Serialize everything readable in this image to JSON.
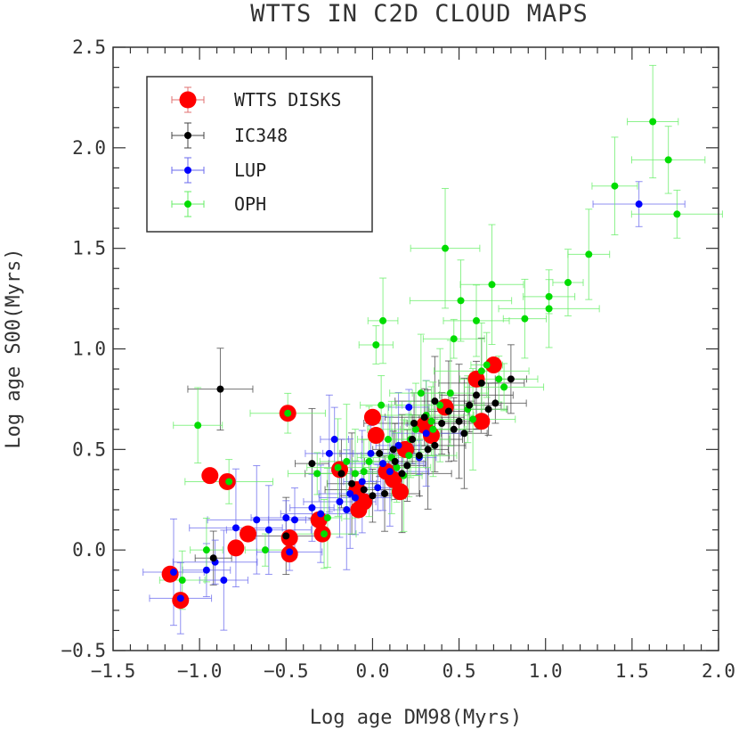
{
  "chart_data": {
    "type": "scatter",
    "title": "WTTS IN C2D CLOUD MAPS",
    "xlabel": "Log age DM98(Myrs)",
    "ylabel": "Log age S00(Myrs)",
    "xlim": [
      -1.5,
      2.0
    ],
    "ylim": [
      -0.5,
      2.5
    ],
    "xticks": [
      -1.5,
      -1.0,
      -0.5,
      0.0,
      0.5,
      1.0,
      1.5,
      2.0
    ],
    "yticks": [
      -0.5,
      0.0,
      0.5,
      1.0,
      1.5,
      2.0,
      2.5
    ],
    "xtick_labels": [
      "−1.5",
      "−1.0",
      "−0.5",
      "0.0",
      "0.5",
      "1.0",
      "1.5",
      "2.0"
    ],
    "ytick_labels": [
      "−0.5",
      "0.0",
      "0.5",
      "1.0",
      "1.5",
      "2.0",
      "2.5"
    ],
    "grid": false,
    "legend_position": "top-left",
    "series": [
      {
        "name": "WTTS DISKS",
        "color": "#ff0000",
        "marker": "large-circle",
        "points": [
          [
            -1.17,
            -0.12
          ],
          [
            -1.11,
            -0.25
          ],
          [
            -0.94,
            0.37
          ],
          [
            -0.84,
            0.34
          ],
          [
            -0.79,
            0.01
          ],
          [
            -0.72,
            0.08
          ],
          [
            -0.49,
            0.68
          ],
          [
            -0.48,
            0.06
          ],
          [
            -0.48,
            -0.02
          ],
          [
            -0.31,
            0.15
          ],
          [
            -0.29,
            0.08
          ],
          [
            -0.19,
            0.4
          ],
          [
            -0.09,
            0.3
          ],
          [
            -0.08,
            0.2
          ],
          [
            -0.05,
            0.24
          ],
          [
            0.0,
            0.66
          ],
          [
            0.02,
            0.57
          ],
          [
            0.08,
            0.39
          ],
          [
            0.12,
            0.35
          ],
          [
            0.16,
            0.29
          ],
          [
            0.19,
            0.5
          ],
          [
            0.3,
            0.62
          ],
          [
            0.34,
            0.57
          ],
          [
            0.42,
            0.71
          ],
          [
            0.6,
            0.85
          ],
          [
            0.63,
            0.64
          ],
          [
            0.7,
            0.92
          ]
        ]
      },
      {
        "name": "IC348",
        "color": "#000000",
        "marker": "dot",
        "points": [
          [
            -0.88,
            0.8
          ],
          [
            -0.92,
            -0.04
          ],
          [
            -0.5,
            0.07
          ],
          [
            -0.35,
            0.43
          ],
          [
            -0.18,
            0.38
          ],
          [
            -0.12,
            0.33
          ],
          [
            -0.05,
            0.3
          ],
          [
            0.0,
            0.27
          ],
          [
            0.04,
            0.48
          ],
          [
            0.07,
            0.28
          ],
          [
            0.12,
            0.5
          ],
          [
            0.17,
            0.38
          ],
          [
            0.2,
            0.42
          ],
          [
            0.23,
            0.55
          ],
          [
            0.27,
            0.47
          ],
          [
            0.3,
            0.66
          ],
          [
            0.32,
            0.5
          ],
          [
            0.36,
            0.52
          ],
          [
            0.4,
            0.63
          ],
          [
            0.44,
            0.69
          ],
          [
            0.47,
            0.6
          ],
          [
            0.5,
            0.64
          ],
          [
            0.53,
            0.58
          ],
          [
            0.56,
            0.72
          ],
          [
            0.6,
            0.77
          ],
          [
            0.63,
            0.83
          ],
          [
            0.67,
            0.7
          ],
          [
            0.71,
            0.73
          ],
          [
            0.8,
            0.85
          ],
          [
            0.36,
            0.74
          ],
          [
            0.24,
            0.63
          ],
          [
            0.13,
            0.44
          ]
        ]
      },
      {
        "name": "LUP",
        "color": "#0000ff",
        "marker": "dot",
        "points": [
          [
            -1.15,
            -0.11
          ],
          [
            -1.11,
            -0.24
          ],
          [
            -0.96,
            -0.1
          ],
          [
            -0.91,
            -0.06
          ],
          [
            -0.86,
            -0.15
          ],
          [
            -0.79,
            0.11
          ],
          [
            -0.67,
            0.15
          ],
          [
            -0.6,
            0.1
          ],
          [
            -0.5,
            0.16
          ],
          [
            -0.45,
            0.15
          ],
          [
            -0.35,
            0.21
          ],
          [
            -0.3,
            0.18
          ],
          [
            -0.25,
            0.48
          ],
          [
            -0.22,
            0.55
          ],
          [
            -0.19,
            0.24
          ],
          [
            -0.15,
            0.2
          ],
          [
            -0.13,
            0.28
          ],
          [
            -0.1,
            0.26
          ],
          [
            -0.06,
            0.34
          ],
          [
            -0.01,
            0.48
          ],
          [
            0.03,
            0.31
          ],
          [
            0.06,
            0.43
          ],
          [
            0.1,
            0.39
          ],
          [
            0.15,
            0.52
          ],
          [
            0.21,
            0.71
          ],
          [
            0.27,
            0.46
          ],
          [
            0.31,
            0.58
          ],
          [
            1.54,
            1.72
          ],
          [
            -0.48,
            -0.01
          ]
        ]
      },
      {
        "name": "OPH",
        "color": "#00dd00",
        "marker": "dot",
        "points": [
          [
            -1.01,
            0.62
          ],
          [
            -0.96,
            0.0
          ],
          [
            -1.1,
            -0.15
          ],
          [
            -0.83,
            0.34
          ],
          [
            -0.62,
            0.0
          ],
          [
            -0.49,
            0.68
          ],
          [
            -0.32,
            0.38
          ],
          [
            -0.28,
            0.08
          ],
          [
            -0.26,
            0.16
          ],
          [
            -0.2,
            0.41
          ],
          [
            -0.15,
            0.44
          ],
          [
            -0.1,
            0.38
          ],
          [
            -0.05,
            0.39
          ],
          [
            -0.02,
            0.44
          ],
          [
            0.02,
            1.02
          ],
          [
            0.05,
            0.72
          ],
          [
            0.06,
            1.14
          ],
          [
            0.09,
            0.55
          ],
          [
            0.11,
            0.46
          ],
          [
            0.14,
            0.41
          ],
          [
            0.18,
            0.37
          ],
          [
            0.22,
            0.55
          ],
          [
            0.25,
            0.6
          ],
          [
            0.28,
            0.78
          ],
          [
            0.31,
            0.67
          ],
          [
            0.35,
            0.6
          ],
          [
            0.39,
            0.72
          ],
          [
            0.42,
            1.5
          ],
          [
            0.45,
            0.78
          ],
          [
            0.47,
            1.05
          ],
          [
            0.51,
            1.24
          ],
          [
            0.55,
            0.7
          ],
          [
            0.58,
            0.65
          ],
          [
            0.6,
            1.14
          ],
          [
            0.63,
            0.89
          ],
          [
            0.66,
            0.92
          ],
          [
            0.69,
            1.32
          ],
          [
            0.73,
            0.85
          ],
          [
            0.76,
            0.81
          ],
          [
            0.88,
            1.15
          ],
          [
            1.02,
            1.26
          ],
          [
            1.02,
            1.2
          ],
          [
            1.13,
            1.33
          ],
          [
            1.25,
            1.47
          ],
          [
            1.4,
            1.81
          ],
          [
            1.62,
            2.13
          ],
          [
            1.71,
            1.94
          ],
          [
            1.76,
            1.67
          ],
          [
            0.34,
            0.64
          ],
          [
            0.21,
            0.47
          ]
        ]
      }
    ]
  }
}
